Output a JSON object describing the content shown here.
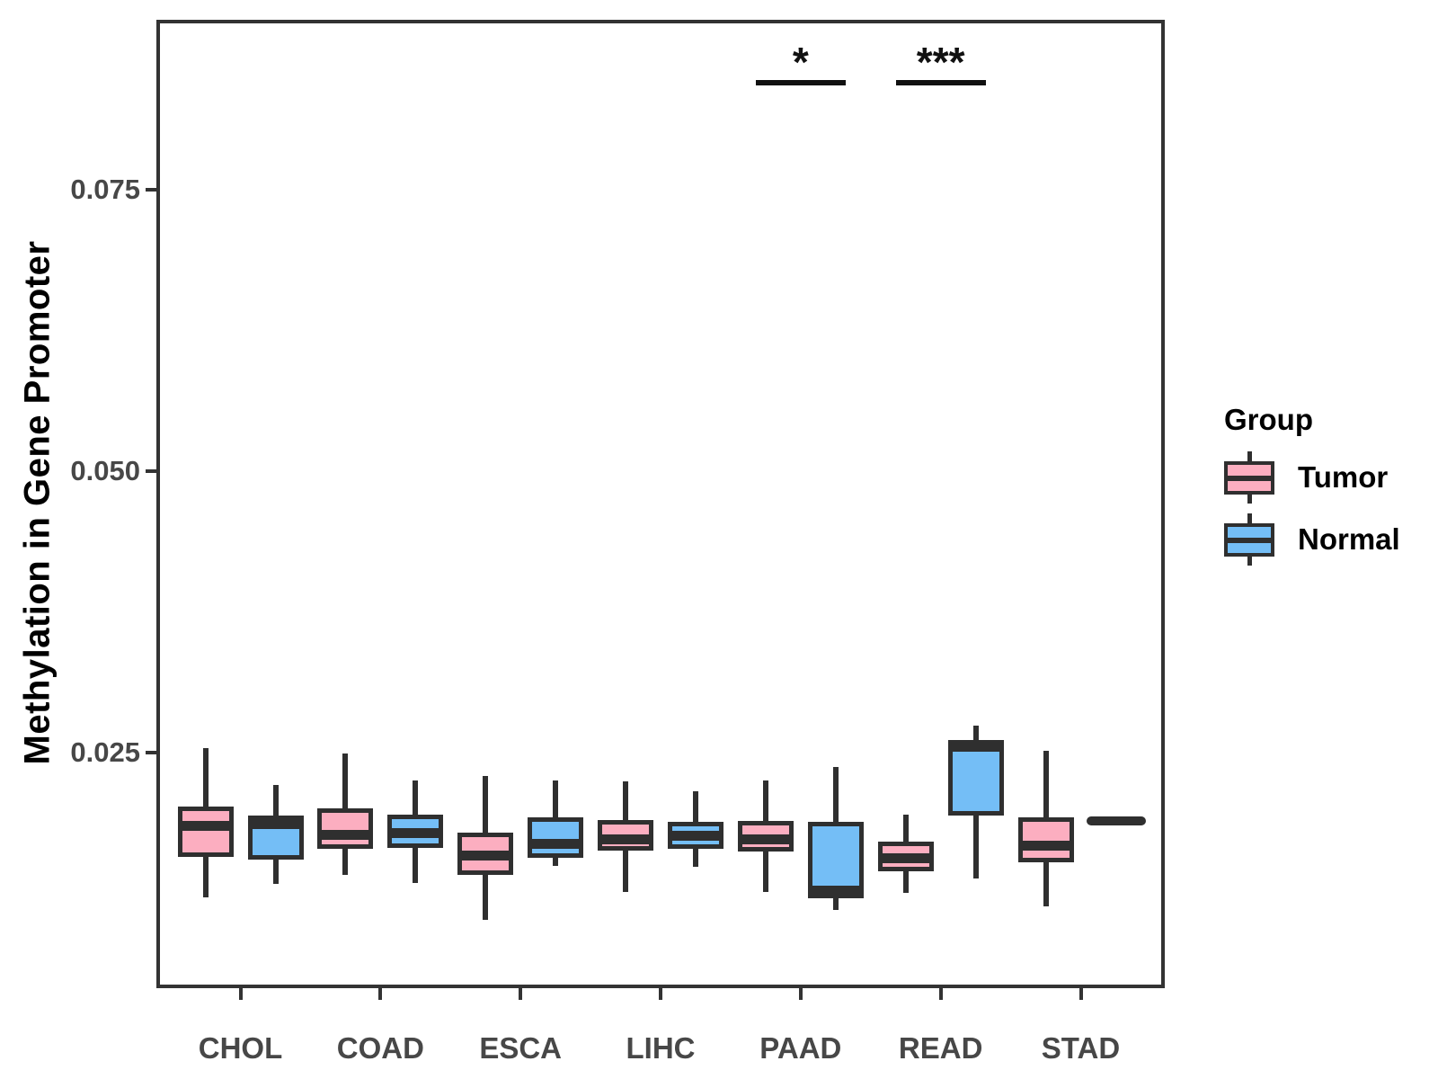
{
  "chart_data": {
    "type": "boxplot",
    "title": "",
    "xlabel": "",
    "ylabel": "Methylation in Gene Promoter",
    "categories": [
      "CHOL",
      "COAD",
      "ESCA",
      "LIHC",
      "PAAD",
      "READ",
      "STAD"
    ],
    "y_ticks": [
      0.025,
      0.05,
      0.075
    ],
    "y_tick_labels": [
      "0.025",
      "0.050",
      "0.075"
    ],
    "ylim": [
      0.0042,
      0.0901
    ],
    "grid": "off",
    "legend": {
      "title": "Group",
      "position": "right",
      "entries": [
        {
          "label": "Tumor",
          "color": "#FCAEC0"
        },
        {
          "label": "Normal",
          "color": "#74BEF6"
        }
      ]
    },
    "series": [
      {
        "name": "Tumor",
        "fill": "#FCAEC0",
        "boxes": [
          {
            "category": "CHOL",
            "low": 0.0121,
            "q1": 0.0157,
            "median": 0.0185,
            "q3": 0.0202,
            "high": 0.0254
          },
          {
            "category": "COAD",
            "low": 0.0141,
            "q1": 0.0164,
            "median": 0.0177,
            "q3": 0.02,
            "high": 0.0249
          },
          {
            "category": "ESCA",
            "low": 0.0101,
            "q1": 0.0141,
            "median": 0.0158,
            "q3": 0.0179,
            "high": 0.0229
          },
          {
            "category": "LIHC",
            "low": 0.0126,
            "q1": 0.0163,
            "median": 0.0173,
            "q3": 0.019,
            "high": 0.0224
          },
          {
            "category": "PAAD",
            "low": 0.0126,
            "q1": 0.0162,
            "median": 0.0173,
            "q3": 0.0189,
            "high": 0.0225
          },
          {
            "category": "READ",
            "low": 0.0125,
            "q1": 0.0144,
            "median": 0.0156,
            "q3": 0.0171,
            "high": 0.0195
          },
          {
            "category": "STAD",
            "low": 0.0113,
            "q1": 0.0152,
            "median": 0.0167,
            "q3": 0.0192,
            "high": 0.0251
          }
        ]
      },
      {
        "name": "Normal",
        "fill": "#74BEF6",
        "boxes": [
          {
            "category": "CHOL",
            "low": 0.0133,
            "q1": 0.0155,
            "median": 0.0186,
            "q3": 0.0194,
            "high": 0.0221
          },
          {
            "category": "COAD",
            "low": 0.0134,
            "q1": 0.0165,
            "median": 0.0178,
            "q3": 0.0195,
            "high": 0.0225
          },
          {
            "category": "ESCA",
            "low": 0.0149,
            "q1": 0.0156,
            "median": 0.0169,
            "q3": 0.0192,
            "high": 0.0225
          },
          {
            "category": "LIHC",
            "low": 0.0148,
            "q1": 0.0164,
            "median": 0.0176,
            "q3": 0.0188,
            "high": 0.0215
          },
          {
            "category": "PAAD",
            "low": 0.011,
            "q1": 0.012,
            "median": 0.0127,
            "q3": 0.0188,
            "high": 0.0237
          },
          {
            "category": "READ",
            "low": 0.0138,
            "q1": 0.0194,
            "median": 0.0255,
            "q3": 0.0261,
            "high": 0.0274
          },
          {
            "category": "STAD",
            "single": 0.0189
          }
        ]
      }
    ],
    "annotations": [
      {
        "category": "PAAD",
        "label": "*"
      },
      {
        "category": "READ",
        "label": "***"
      }
    ]
  }
}
